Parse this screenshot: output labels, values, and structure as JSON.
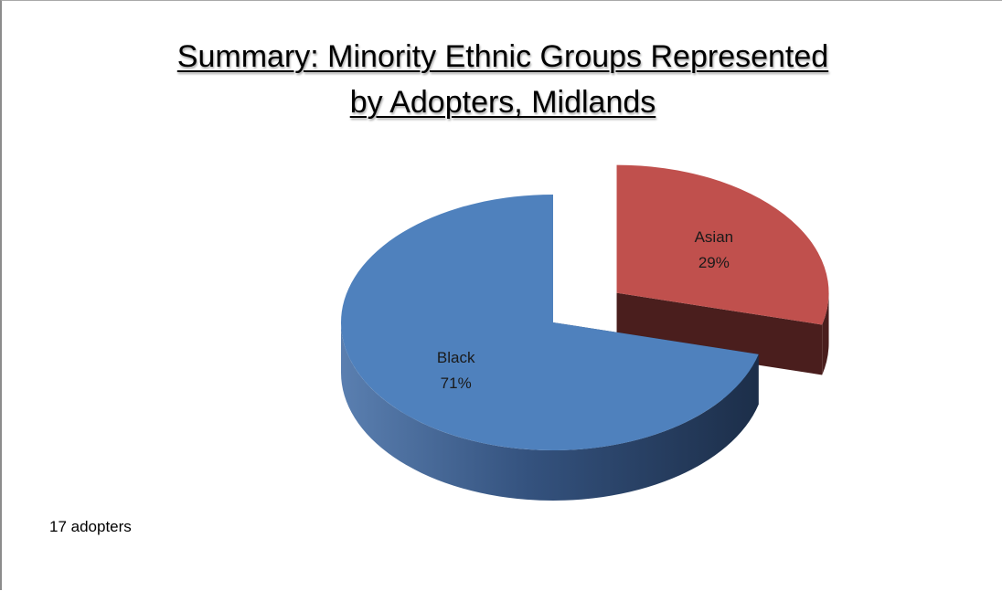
{
  "chart_data": {
    "type": "pie",
    "title": "Summary:  Minority Ethnic Groups Represented",
    "subtitle": "by Adopters, Midlands",
    "slices": [
      {
        "name": "Asian",
        "value": 29,
        "label": "29%",
        "color": "#c0504d",
        "side_color": "#4a1e1d",
        "exploded": true
      },
      {
        "name": "Black",
        "value": 71,
        "label": "71%",
        "color": "#4f81bd",
        "side_color": "#233957",
        "exploded": false
      }
    ],
    "style": "3d-exploded",
    "start_angle_deg": 0,
    "direction": "clockwise",
    "legend": "none"
  },
  "footnote": "17 adopters"
}
